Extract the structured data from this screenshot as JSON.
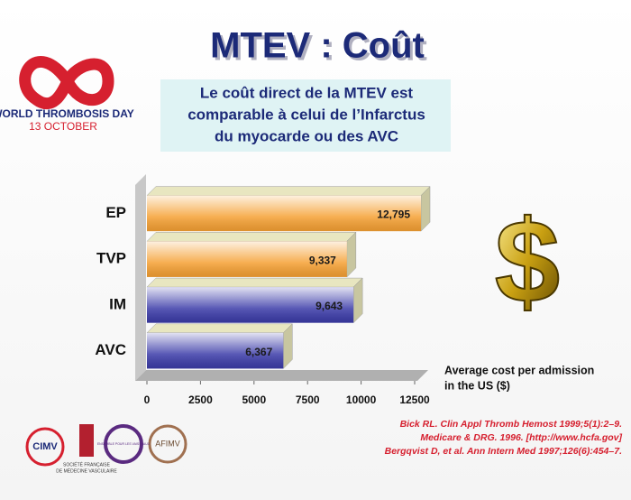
{
  "header": {
    "logo_line1": "WORLD THROMBOSIS DAY",
    "logo_line2": "13 OCTOBER",
    "box_lines": [
      "Le coût direct de la MTEV est",
      "comparable à celui de l’Infarctus",
      "du myocarde ou des AVC"
    ]
  },
  "chart_data": {
    "type": "bar",
    "orientation": "horizontal",
    "title": "MTEV : Coût",
    "categories": [
      "EP",
      "TVP",
      "IM",
      "AVC"
    ],
    "values": [
      12795,
      9337,
      9643,
      6367
    ],
    "value_labels": [
      "12,795",
      "9,337",
      "9,643",
      "6,367"
    ],
    "colors": [
      "#f5a033",
      "#f5a033",
      "#3b3ba8",
      "#3b3ba8"
    ],
    "xlim": [
      0,
      12500
    ],
    "xticks": [
      0,
      2500,
      5000,
      7500,
      10000,
      12500
    ],
    "xlabel_lines": [
      "Average cost per admission",
      "in the US ($)"
    ],
    "grid": false
  },
  "footer": {
    "logos": [
      "CIMV",
      "SOCIÉTÉ FRANÇAISE",
      "DE MÉDECINE VASCULAIRE",
      "ENSEMBLE POUR LES VAISSEAUX",
      "AFIMV"
    ],
    "references": [
      "Bick RL. Clin Appl Thromb Hemost 1999;5(1):2–9.",
      "Medicare & DRG. 1996. [http://www.hcfa.gov]",
      "Bergqvist D, et al. Ann Intern Med 1997;126(6):454–7."
    ]
  }
}
